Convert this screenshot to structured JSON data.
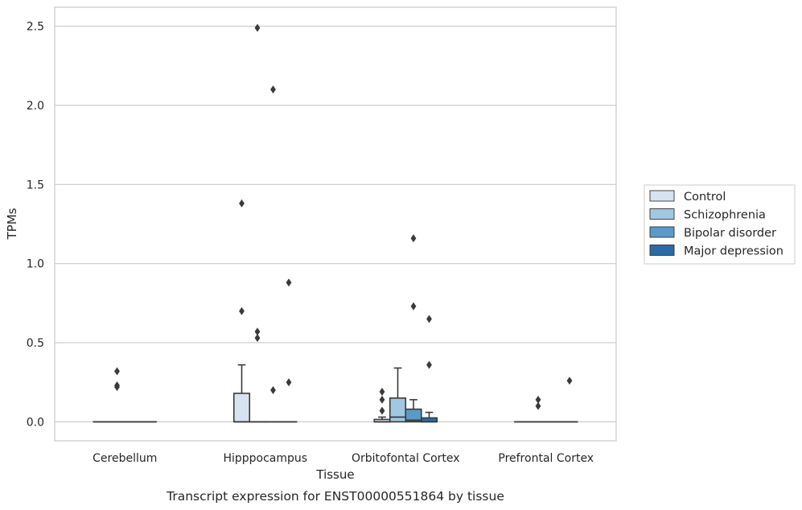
{
  "chart_data": {
    "type": "box",
    "xlabel": "Tissue",
    "ylabel": "TPMs",
    "caption": "Transcript expression for ENST00000551864 by tissue",
    "ylim": [
      -0.12,
      2.62
    ],
    "yticks": [
      "0.0",
      "0.5",
      "1.0",
      "1.5",
      "2.0",
      "2.5"
    ],
    "categories": [
      "Cerebellum",
      "Hipppocampus",
      "Orbitofontal Cortex",
      "Prefrontal Cortex"
    ],
    "grid": "horizontal",
    "legend_position": "right",
    "series": [
      {
        "name": "Control",
        "color": "#d6e4f2",
        "boxes": [
          {
            "q1": 0,
            "median": 0,
            "q3": 0,
            "whislo": 0,
            "whishi": 0,
            "fliers": []
          },
          {
            "q1": 0,
            "median": 0,
            "q3": 0.18,
            "whislo": 0,
            "whishi": 0.36,
            "fliers": [
              0.7,
              1.38
            ]
          },
          {
            "q1": 0,
            "median": 0,
            "q3": 0.015,
            "whislo": 0,
            "whishi": 0.03,
            "fliers": [
              0.07,
              0.14,
              0.19
            ]
          },
          {
            "q1": 0,
            "median": 0,
            "q3": 0,
            "whislo": 0,
            "whishi": 0,
            "fliers": []
          }
        ]
      },
      {
        "name": "Schizophrenia",
        "color": "#a0c8e0",
        "boxes": [
          {
            "q1": 0,
            "median": 0,
            "q3": 0,
            "whislo": 0,
            "whishi": 0,
            "fliers": [
              0.22,
              0.23,
              0.32
            ]
          },
          {
            "q1": 0,
            "median": 0,
            "q3": 0,
            "whislo": 0,
            "whishi": 0,
            "fliers": [
              0.53,
              0.57,
              2.49
            ]
          },
          {
            "q1": 0,
            "median": 0.03,
            "q3": 0.15,
            "whislo": 0,
            "whishi": 0.34,
            "fliers": []
          },
          {
            "q1": 0,
            "median": 0,
            "q3": 0,
            "whislo": 0,
            "whishi": 0,
            "fliers": [
              0.1,
              0.14
            ]
          }
        ]
      },
      {
        "name": "Bipolar disorder",
        "color": "#5a9ac8",
        "boxes": [
          {
            "q1": 0,
            "median": 0,
            "q3": 0,
            "whislo": 0,
            "whishi": 0,
            "fliers": []
          },
          {
            "q1": 0,
            "median": 0,
            "q3": 0,
            "whislo": 0,
            "whishi": 0,
            "fliers": [
              0.2,
              2.1
            ]
          },
          {
            "q1": 0,
            "median": 0.01,
            "q3": 0.08,
            "whislo": 0,
            "whishi": 0.14,
            "fliers": [
              0.73,
              1.16
            ]
          },
          {
            "q1": 0,
            "median": 0,
            "q3": 0,
            "whislo": 0,
            "whishi": 0,
            "fliers": []
          }
        ]
      },
      {
        "name": "Major depression",
        "color": "#2c6aa6",
        "boxes": [
          {
            "q1": 0,
            "median": 0,
            "q3": 0,
            "whislo": 0,
            "whishi": 0,
            "fliers": []
          },
          {
            "q1": 0,
            "median": 0,
            "q3": 0,
            "whislo": 0,
            "whishi": 0,
            "fliers": [
              0.25,
              0.88
            ]
          },
          {
            "q1": 0,
            "median": 0,
            "q3": 0.025,
            "whislo": 0,
            "whishi": 0.06,
            "fliers": [
              0.36,
              0.65
            ]
          },
          {
            "q1": 0,
            "median": 0,
            "q3": 0,
            "whislo": 0,
            "whishi": 0,
            "fliers": [
              0.26
            ]
          }
        ]
      }
    ]
  }
}
